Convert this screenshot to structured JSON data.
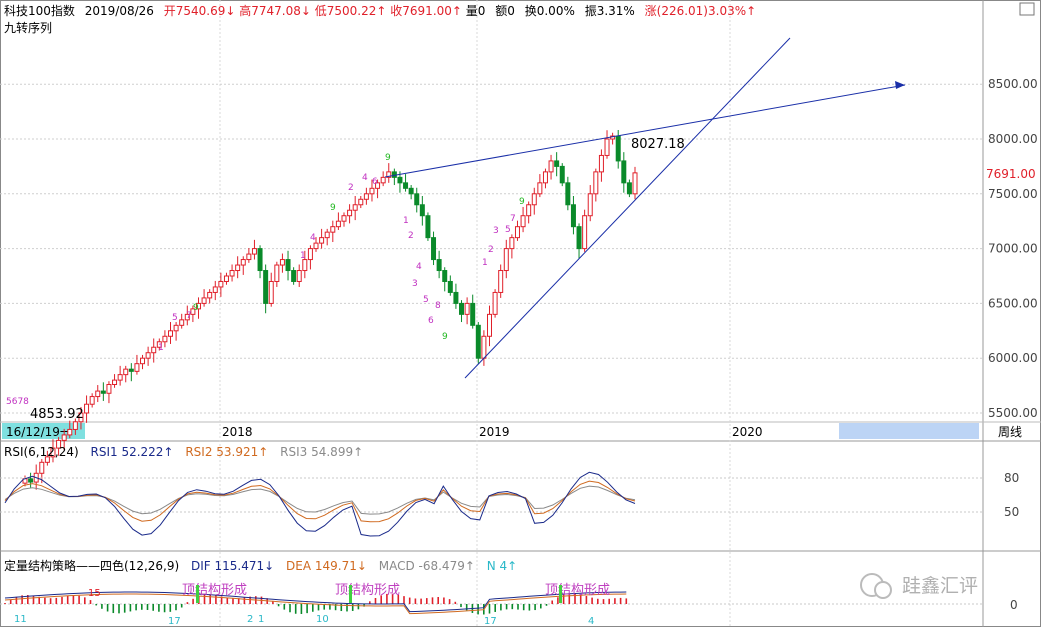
{
  "header": {
    "symbol": "科技100指数",
    "date": "2019/08/26",
    "open": "开7540.69↓",
    "high": "高7747.08↓",
    "low": "低7500.22↑",
    "close": "收7691.00↑",
    "volume": "量0",
    "amount": "额0",
    "turnover": "换0.00%",
    "amplitude": "振3.31%",
    "change": "涨(226.01)3.03%↑",
    "overlay": "九转序列"
  },
  "price_axis": {
    "ticks": [
      "8500.00",
      "8000.00",
      "7500.00",
      "7000.00",
      "6500.00",
      "6000.00",
      "5500.00"
    ],
    "current": "7691.00"
  },
  "annotations": {
    "low": "4853.92",
    "high": "8027.18"
  },
  "time_axis": {
    "start": "16/12/19一",
    "years": [
      "2018",
      "2019",
      "2020"
    ],
    "period": "周线"
  },
  "rsi": {
    "title": "RSI(6,12,24)",
    "rsi1": "RSI1 52.222↑",
    "rsi2": "RSI2 53.921↑",
    "rsi3": "RSI3 54.899↑",
    "ticks": [
      "80",
      "50"
    ]
  },
  "macd": {
    "title": "定量结构策略——四色(12,26,9)",
    "dif": "DIF 115.471↓",
    "dea": "DEA 149.71↓",
    "macd": "MACD -68.479↑",
    "n": "N 4↑",
    "ticks": [
      "0"
    ],
    "signals": [
      "顶结构形成",
      "顶结构形成",
      "顶结构形成"
    ],
    "numbers": [
      "15",
      "11",
      "17",
      "2",
      "1",
      "10",
      "17",
      "4"
    ]
  },
  "watermark": "跬鑫汇评",
  "chart_data": [
    {
      "type": "candlestick",
      "title": "科技100指数",
      "period": "weekly",
      "ylim": [
        5400,
        8900
      ],
      "y_ticks": [
        5500,
        6000,
        6500,
        7000,
        7500,
        8000,
        8500
      ],
      "grid": true,
      "x_labels": [
        "16/12/19一",
        "2018",
        "2019",
        "2020"
      ],
      "closes": [
        4900,
        4870,
        4950,
        5050,
        5100,
        5180,
        5250,
        5300,
        5350,
        5420,
        5500,
        5580,
        5650,
        5700,
        5680,
        5760,
        5800,
        5850,
        5900,
        5880,
        5950,
        6000,
        6050,
        6100,
        6150,
        6200,
        6250,
        6300,
        6350,
        6400,
        6450,
        6500,
        6550,
        6600,
        6650,
        6700,
        6750,
        6800,
        6850,
        6900,
        6950,
        7000,
        6800,
        6500,
        6700,
        6850,
        6900,
        6800,
        6700,
        6800,
        6900,
        7000,
        7050,
        7100,
        7150,
        7200,
        7250,
        7300,
        7350,
        7400,
        7450,
        7500,
        7550,
        7600,
        7650,
        7700,
        7650,
        7600,
        7550,
        7500,
        7400,
        7300,
        7100,
        6900,
        6800,
        6700,
        6600,
        6500,
        6400,
        6500,
        6300,
        6000,
        6200,
        6400,
        6600,
        6800,
        7000,
        7100,
        7200,
        7300,
        7400,
        7500,
        7600,
        7700,
        7800,
        7750,
        7600,
        7400,
        7200,
        7000,
        7300,
        7500,
        7700,
        7850,
        8000,
        8027,
        7800,
        7600,
        7500,
        7691
      ],
      "annotations": [
        {
          "text": "4853.92",
          "value": 4853.92
        },
        {
          "text": "8027.18",
          "value": 8027.18
        },
        {
          "text": "7691.00",
          "value": 7691.0
        }
      ]
    },
    {
      "type": "line",
      "title": "RSI(6,12,24)",
      "ylim": [
        20,
        100
      ],
      "y_ticks": [
        50,
        80
      ],
      "series": [
        {
          "name": "RSI1",
          "last": 52.222
        },
        {
          "name": "RSI2",
          "last": 53.921
        },
        {
          "name": "RSI3",
          "last": 54.899
        }
      ]
    },
    {
      "type": "bar",
      "title": "定量结构策略——四色(12,26,9)",
      "y_ticks": [
        0
      ],
      "series": [
        {
          "name": "DIF",
          "last": 115.471
        },
        {
          "name": "DEA",
          "last": 149.71
        },
        {
          "name": "MACD",
          "last": -68.479
        }
      ]
    }
  ],
  "colors": {
    "up": "#e0202a",
    "down": "#0a8a2a",
    "trend": "#1a2fa8",
    "nine": "#c030c0",
    "nine_green": "#22b822",
    "rsi1": "#1a2a8a",
    "rsi2": "#d06a20",
    "rsi3": "#8a8a8a",
    "highlight": "#bcd4f5",
    "cyan": "#5ce0e0"
  }
}
